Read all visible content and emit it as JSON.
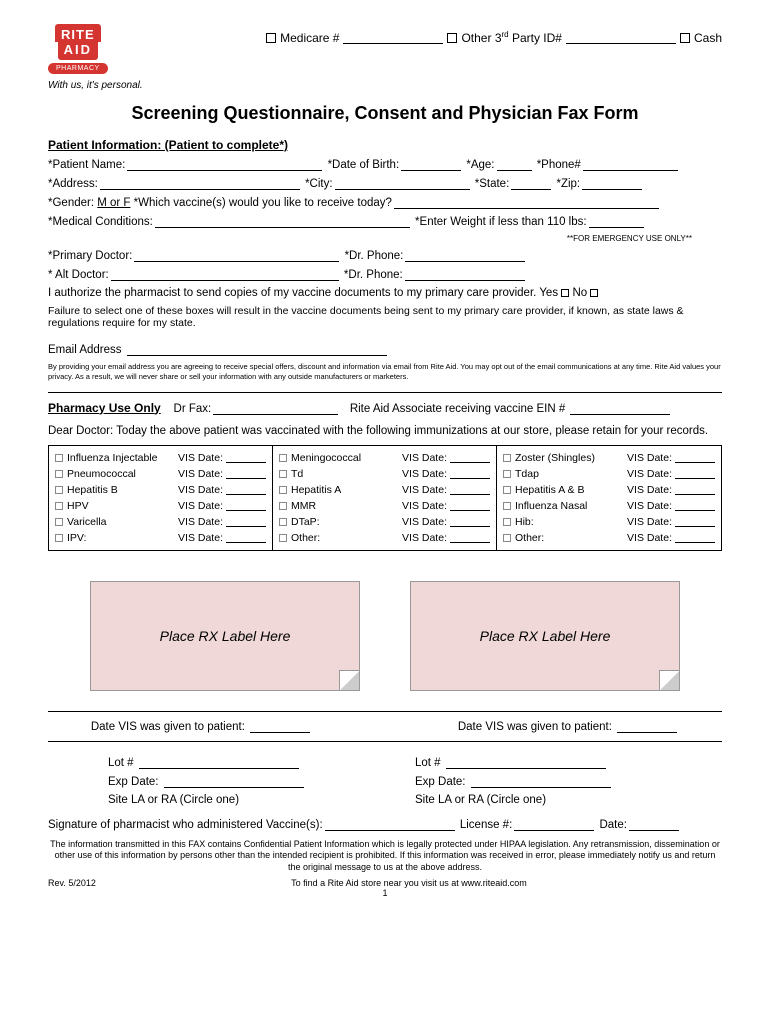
{
  "logo": {
    "line1": "RITE",
    "line2": "AID",
    "pharm": "PHARMACY",
    "tagline": "With us, it's personal."
  },
  "top": {
    "medicare": "Medicare #",
    "other": "Other 3",
    "other_sup": "rd",
    "other_suffix": " Party ID#",
    "cash": "Cash"
  },
  "title": "Screening Questionnaire, Consent and Physician Fax Form",
  "patient_info": {
    "heading": "Patient Information: (Patient to complete*)",
    "name": "*Patient Name:",
    "dob": "*Date of Birth:",
    "age": "*Age:",
    "phone": "*Phone#",
    "address": "*Address:",
    "city": "*City:",
    "state": "*State:",
    "zip": "*Zip:",
    "gender": "*Gender: ",
    "gender_val": "M or F",
    "vaccine_q": "  *Which vaccine(s) would you like to receive today?",
    "med_cond": "*Medical Conditions:",
    "weight": "*Enter Weight if less than 110 lbs:",
    "weight_note": "**FOR EMERGENCY USE ONLY**",
    "primary_dr": "*Primary Doctor:",
    "dr_phone": "*Dr. Phone:",
    "alt_dr": "* Alt Doctor:",
    "alt_phone": "*Dr. Phone:",
    "auth": "I authorize the pharmacist to send copies of my vaccine documents to my primary care provider. Yes ",
    "no": "  No ",
    "auth_fail": "Failure to select one of these boxes will result in the vaccine documents being sent to my primary care provider, if known, as state laws & regulations require for my state.",
    "email": "Email Address",
    "email_disc": "By providing your email address you are agreeing to receive special offers, discount and information via email from Rite Aid.  You may opt out of the email communications at any time.  Rite Aid values your privacy.  As a result, we will never share or sell your information with any outside manufacturers or marketers."
  },
  "pharmacy": {
    "heading": "Pharmacy Use Only",
    "dr_fax": "Dr Fax:",
    "ein": "Rite Aid Associate receiving vaccine EIN #",
    "dear": "Dear Doctor:  Today the above patient was vaccinated with the following immunizations at our store, please retain for your records."
  },
  "vaccines": {
    "vis_label": "VIS Date:",
    "col1": [
      "Influenza Injectable",
      "Pneumococcal",
      "Hepatitis B",
      "HPV",
      "Varicella",
      "IPV:"
    ],
    "col2": [
      "Meningococcal",
      "Td",
      "Hepatitis A",
      "MMR",
      "DTaP:",
      "Other:"
    ],
    "col3": [
      "Zoster (Shingles)",
      "Tdap",
      "Hepatitis A & B",
      "Influenza Nasal",
      "Hib:",
      "Other:"
    ]
  },
  "rx_label": "Place RX Label Here",
  "bottom": {
    "date_vis": "Date VIS was given to patient:",
    "lot": "Lot #",
    "exp": "Exp Date:",
    "site": "Site LA or RA (Circle one)",
    "sig": "Signature of pharmacist who administered Vaccine(s):",
    "license": "License #:",
    "date": "Date:"
  },
  "footer": {
    "hipaa": "The information transmitted in this FAX contains Confidential Patient Information which is legally protected under HIPAA legislation.  Any retransmission, dissemination or other use of this information by persons other than the intended recipient is prohibited.  If this information was received in error, please immediately notify us and return the original message to us at the above address.",
    "rev": "Rev. 5/2012",
    "find": "To find a Rite Aid store near you visit us at www.riteaid.com",
    "pg": "1"
  }
}
